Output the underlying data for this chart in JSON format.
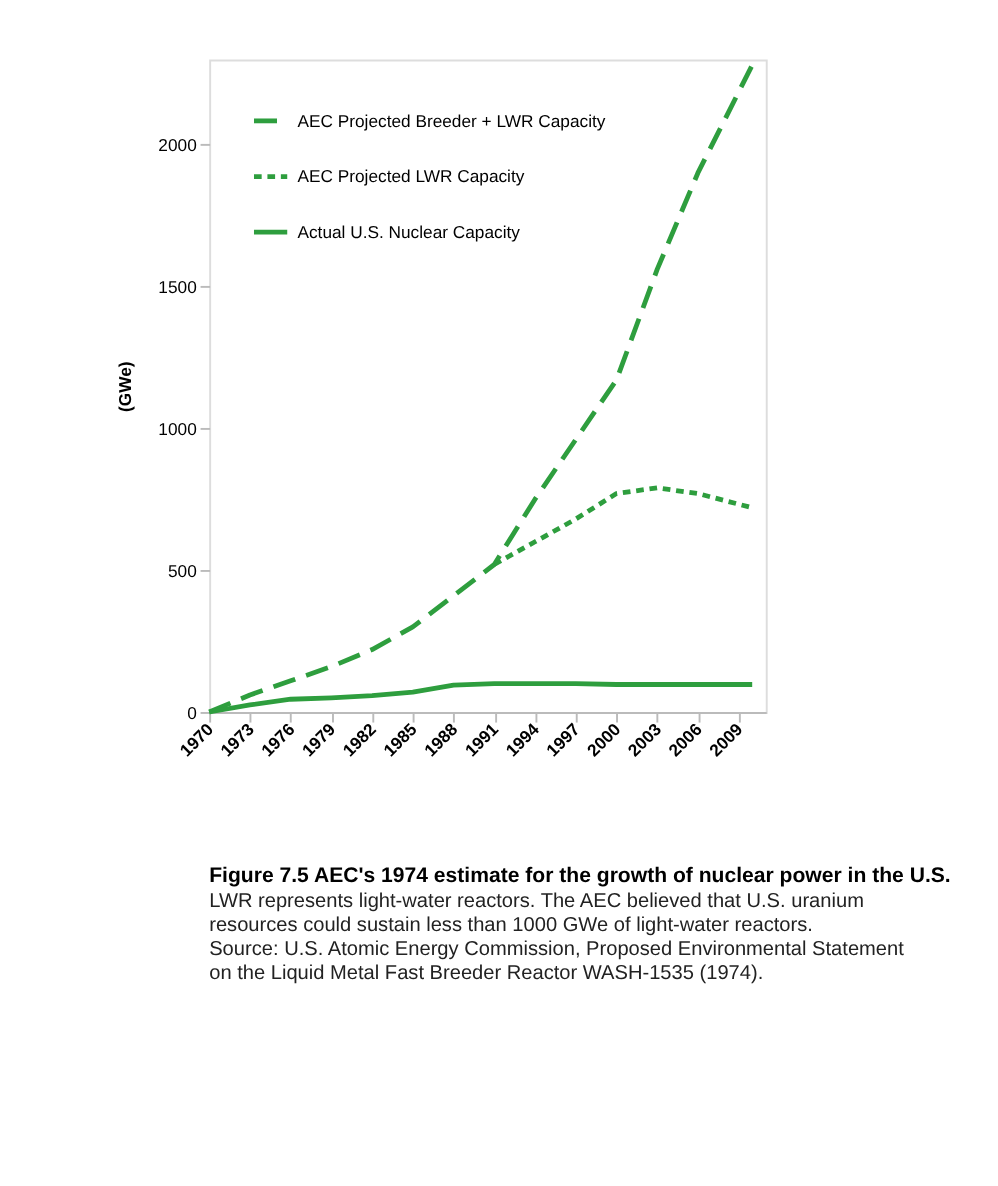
{
  "chart_data": {
    "type": "line",
    "title": "Figure 7.5  AEC's 1974 estimate for the growth of nuclear power in the U.S.",
    "subtitle": "LWR represents light-water reactors. The AEC believed that U.S. uranium resources could sustain less than 1000 GWe of light-water reactors. Source: U.S. Atomic Energy Commission, Proposed Environmental Statement on the Liquid Metal Fast Breeder Reactor WASH-1535 (1974).",
    "ylabel": "(GWe)",
    "xlim": [
      1970,
      2011
    ],
    "xticks": [
      1970,
      1973,
      1976,
      1979,
      1982,
      1985,
      1988,
      1991,
      1994,
      1997,
      2000,
      2003,
      2006,
      2009
    ],
    "ylim": [
      0,
      2300
    ],
    "yticks": [
      0,
      500,
      1000,
      1500,
      2000
    ],
    "grid": false,
    "legend": "top left",
    "marker": "none",
    "series": [
      {
        "name": "AEC Projected Breeder + LWR Capacity",
        "color": "#2e9e3e",
        "line_style": "dashed",
        "x": [
          1970,
          1973,
          1976,
          1979,
          1982,
          1985,
          1988,
          1991,
          1994,
          1997,
          2000,
          2003,
          2006,
          2010
        ],
        "values": [
          0,
          60,
          110,
          160,
          220,
          300,
          410,
          520,
          750,
          960,
          1170,
          1560,
          1900,
          2280
        ]
      },
      {
        "name": "AEC Projected LWR Capacity",
        "color": "#2e9e3e",
        "line_style": "dotted",
        "x": [
          1991,
          1994,
          1997,
          2000,
          2003,
          2006,
          2010
        ],
        "values": [
          520,
          600,
          680,
          770,
          790,
          770,
          720
        ]
      },
      {
        "name": "Actual U.S. Nuclear Capacity",
        "color": "#2e9e3e",
        "line_style": "solid",
        "x": [
          1970,
          1973,
          1976,
          1979,
          1982,
          1985,
          1988,
          1991,
          1994,
          1997,
          2000,
          2003,
          2006,
          2010
        ],
        "values": [
          0,
          25,
          45,
          50,
          58,
          70,
          95,
          100,
          100,
          100,
          97,
          97,
          97,
          97
        ]
      }
    ]
  }
}
